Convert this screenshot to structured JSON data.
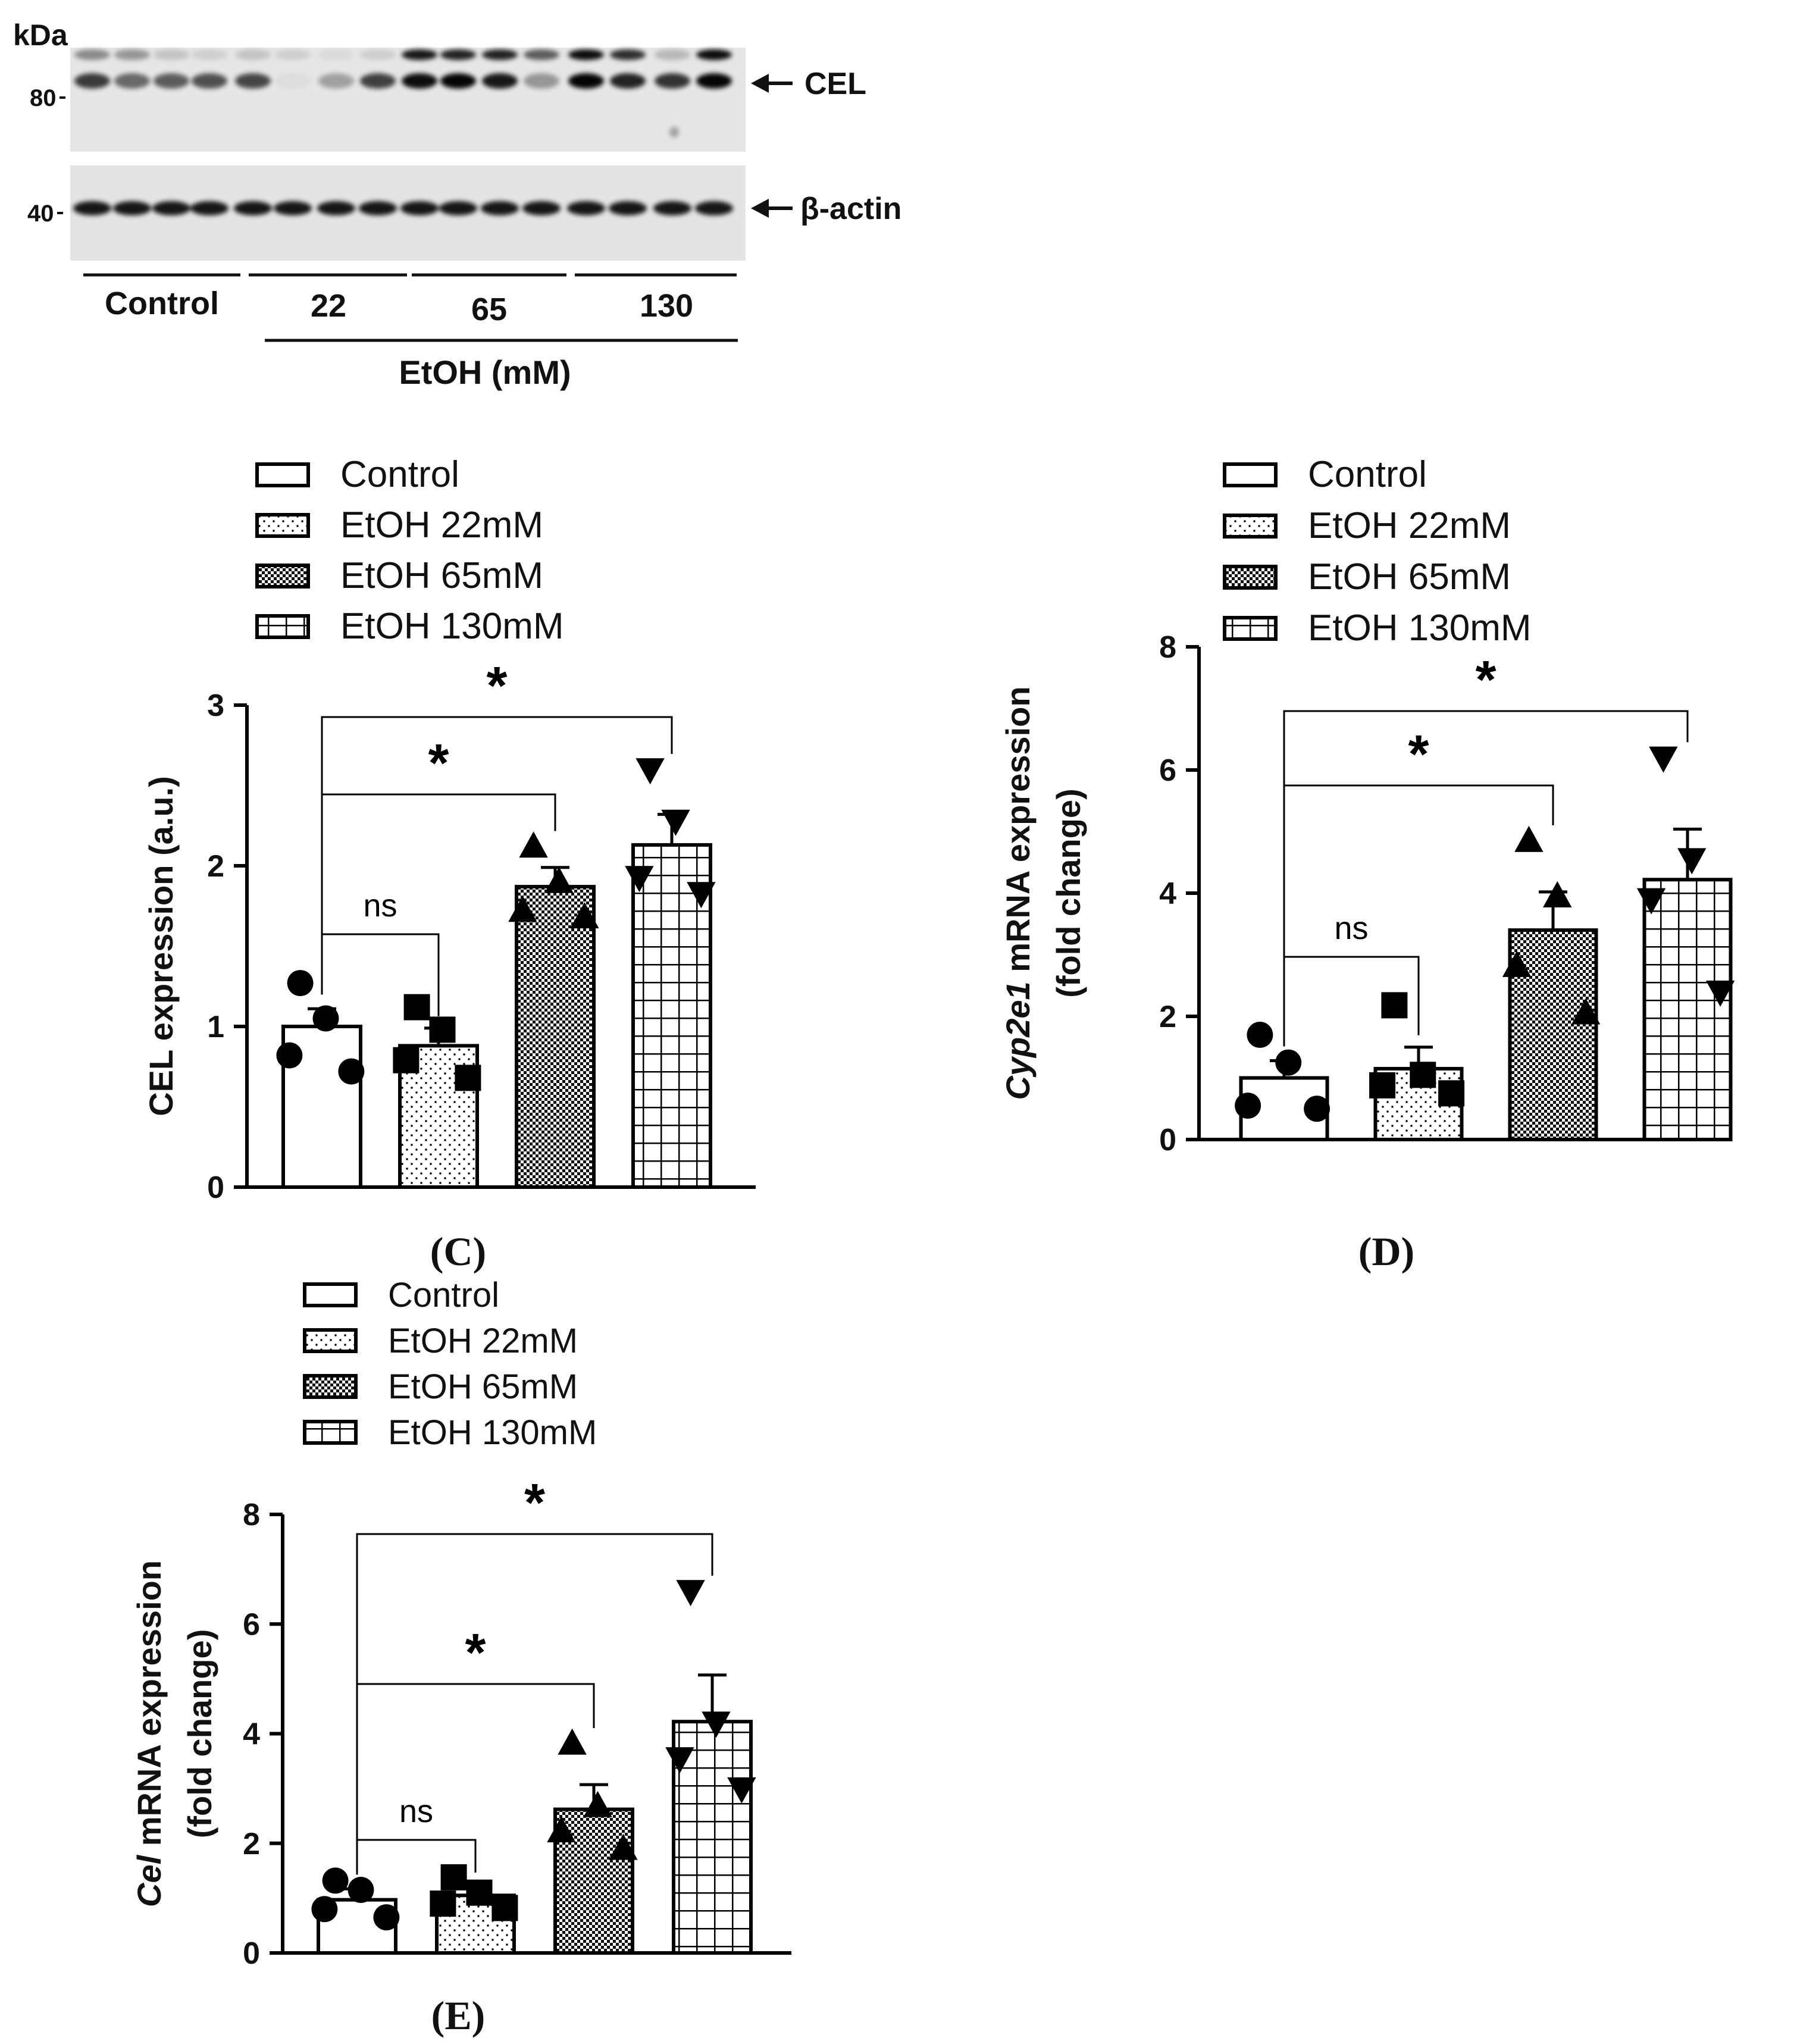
{
  "blot": {
    "kda_label": "kDa",
    "marker_80": "80",
    "marker_40": "40",
    "cel_label": "CEL",
    "actin_label": "β-actin",
    "groups": [
      "Control",
      "22",
      "65",
      "130"
    ],
    "treatment_label": "EtOH (mM)"
  },
  "legend_entries": [
    "Control",
    "EtOH 22mM",
    "EtOH 65mM",
    "EtOH 130mM"
  ],
  "chart_data": [
    {
      "panel": "(C)",
      "type": "bar",
      "categories": [
        "Control",
        "EtOH 22mM",
        "EtOH 65mM",
        "EtOH 130mM"
      ],
      "values": [
        1.0,
        0.88,
        1.87,
        2.13
      ],
      "errors": [
        0.11,
        0.11,
        0.12,
        0.19
      ],
      "points": [
        [
          1.27,
          1.05,
          0.82,
          0.72
        ],
        [
          1.12,
          0.98,
          0.79,
          0.68
        ],
        [
          2.12,
          1.9,
          1.72,
          1.68
        ],
        [
          2.6,
          2.28,
          1.93,
          1.83
        ]
      ],
      "markers": [
        "circle",
        "square",
        "triangle-up",
        "triangle-down"
      ],
      "xlabel": "",
      "ylabel": "CEL expression (a.u.)",
      "ylim": [
        0,
        3
      ],
      "yticks": [
        "0",
        "1",
        "2",
        "3"
      ],
      "significance": [
        {
          "from": 0,
          "to": 1,
          "label": "ns"
        },
        {
          "from": 0,
          "to": 2,
          "label": "*"
        },
        {
          "from": 0,
          "to": 3,
          "label": "*"
        }
      ]
    },
    {
      "panel": "(D)",
      "type": "bar",
      "categories": [
        "Control",
        "EtOH 22mM",
        "EtOH 65mM",
        "EtOH 130mM"
      ],
      "values": [
        1.0,
        1.15,
        3.4,
        4.22
      ],
      "errors": [
        0.28,
        0.35,
        0.62,
        0.82
      ],
      "points": [
        [
          1.7,
          1.25,
          0.55,
          0.5
        ],
        [
          2.18,
          1.05,
          0.88,
          0.75
        ],
        [
          4.85,
          3.95,
          2.82,
          2.05
        ],
        [
          6.2,
          4.55,
          3.9,
          2.4
        ]
      ],
      "markers": [
        "circle",
        "square",
        "triangle-up",
        "triangle-down"
      ],
      "xlabel": "",
      "ylabel": "Cyp2e1 mRNA expression (fold change)",
      "ylabel_italic": "Cyp2e1",
      "ylabel_rest": " mRNA expression",
      "ylabel_line2": "(fold change)",
      "ylim": [
        0,
        8
      ],
      "yticks": [
        "0",
        "2",
        "4",
        "6",
        "8"
      ],
      "significance": [
        {
          "from": 0,
          "to": 1,
          "label": "ns"
        },
        {
          "from": 0,
          "to": 2,
          "label": "*"
        },
        {
          "from": 0,
          "to": 3,
          "label": "*"
        }
      ]
    },
    {
      "panel": "(E)",
      "type": "bar",
      "categories": [
        "Control",
        "EtOH 22mM",
        "EtOH 65mM",
        "EtOH 130mM"
      ],
      "values": [
        0.97,
        1.05,
        2.62,
        4.22
      ],
      "errors": [
        0.2,
        0.2,
        0.45,
        0.85
      ],
      "points": [
        [
          1.32,
          1.15,
          0.8,
          0.65
        ],
        [
          1.38,
          1.1,
          0.9,
          0.82
        ],
        [
          3.82,
          2.68,
          2.22,
          1.9
        ],
        [
          6.6,
          4.2,
          3.55,
          3.0
        ]
      ],
      "markers": [
        "circle",
        "square",
        "triangle-up",
        "triangle-down"
      ],
      "xlabel": "",
      "ylabel": "Cel mRNA expression (fold change)",
      "ylabel_italic": "Cel",
      "ylabel_rest": " mRNA expression",
      "ylabel_line2": "(fold change)",
      "ylim": [
        0,
        8
      ],
      "yticks": [
        "0",
        "2",
        "4",
        "6",
        "8"
      ],
      "significance": [
        {
          "from": 0,
          "to": 1,
          "label": "ns"
        },
        {
          "from": 0,
          "to": 2,
          "label": "*"
        },
        {
          "from": 0,
          "to": 3,
          "label": "*"
        }
      ]
    }
  ]
}
